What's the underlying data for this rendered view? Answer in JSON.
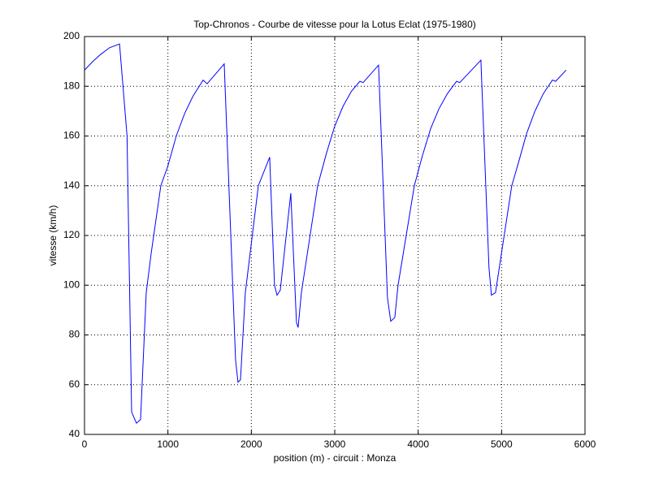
{
  "chart_data": {
    "type": "line",
    "title": "Top-Chronos - Courbe de vitesse pour la Lotus Eclat (1975-1980)",
    "xlabel": "position (m) - circuit : Monza",
    "ylabel": "vitesse (km/h)",
    "x": [
      0,
      100,
      200,
      300,
      420,
      510,
      565,
      623,
      672,
      740,
      800,
      915,
      1000,
      1100,
      1200,
      1300,
      1422,
      1470,
      1675,
      1811,
      1840,
      1870,
      1928,
      2084,
      2220,
      2278,
      2308,
      2347,
      2473,
      2541,
      2561,
      2600,
      2795,
      2900,
      3000,
      3100,
      3200,
      3301,
      3340,
      3525,
      3632,
      3671,
      3720,
      3759,
      3954,
      4050,
      4150,
      4250,
      4350,
      4460,
      4499,
      4752,
      4849,
      4878,
      4927,
      5122,
      5200,
      5300,
      5400,
      5500,
      5609,
      5648,
      5774
    ],
    "values": [
      186.5,
      190,
      193,
      195.5,
      197,
      160,
      49,
      44.5,
      46,
      97,
      113,
      140,
      148,
      160,
      169,
      176,
      182.5,
      181,
      189,
      70,
      61,
      62,
      97,
      140,
      151.5,
      100,
      96,
      98,
      137,
      85,
      83,
      97,
      140,
      153,
      164,
      172,
      178,
      182,
      181.5,
      188.5,
      95,
      85.5,
      87,
      100,
      140,
      152,
      163,
      171,
      177,
      182,
      181.5,
      190.5,
      107,
      96,
      97,
      140,
      149,
      161,
      170,
      177,
      182.5,
      182,
      186.5
    ],
    "color": "#0000ff",
    "xlim": [
      0,
      6000
    ],
    "xticks": [
      0,
      1000,
      2000,
      3000,
      4000,
      5000,
      6000
    ],
    "ylim": [
      40,
      200
    ],
    "yticks": [
      40,
      60,
      80,
      100,
      120,
      140,
      160,
      180,
      200
    ],
    "grid": true
  }
}
